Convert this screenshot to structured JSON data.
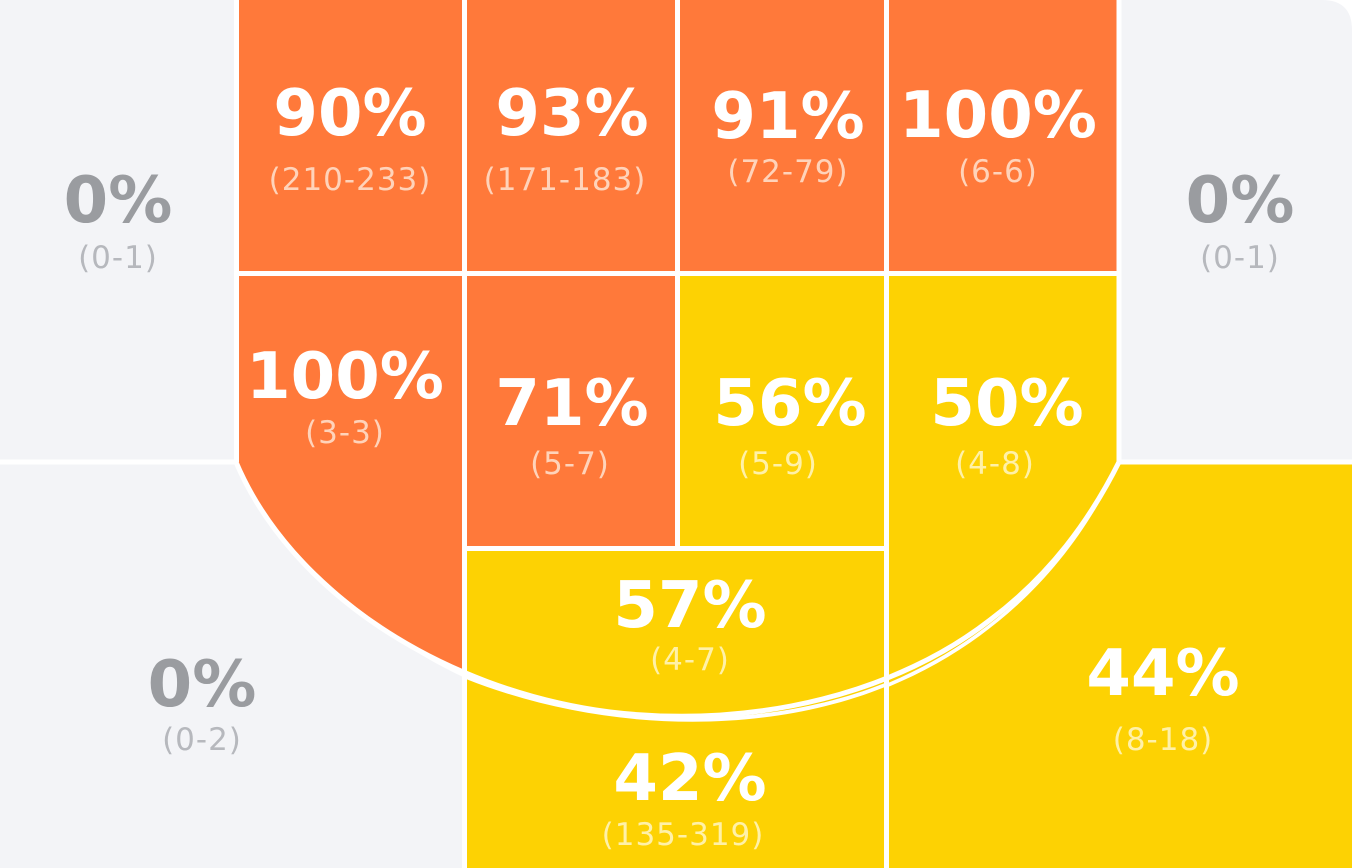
{
  "chart_data": {
    "type": "heatmap",
    "colors": {
      "hot": "#FF793A",
      "warm": "#FDD203",
      "none": "#F3F4F7",
      "divider": "#FFFFFF",
      "hot_count": "#FFD3BA",
      "warm_count": "#FFF1A8",
      "none_pct": "#9A9CA0",
      "none_count": "#B6B8BD"
    },
    "zones": [
      {
        "zone": "left-corner",
        "pct": "0%",
        "made": 0,
        "attempts": 1,
        "count": "(0-1)",
        "heat": "none"
      },
      {
        "zone": "top-1",
        "pct": "90%",
        "made": 210,
        "attempts": 233,
        "count": "(210-233)",
        "heat": "hot"
      },
      {
        "zone": "top-2",
        "pct": "93%",
        "made": 171,
        "attempts": 183,
        "count": "(171-183)",
        "heat": "hot"
      },
      {
        "zone": "top-3",
        "pct": "91%",
        "made": 72,
        "attempts": 79,
        "count": "(72-79)",
        "heat": "hot"
      },
      {
        "zone": "top-4",
        "pct": "100%",
        "made": 6,
        "attempts": 6,
        "count": "(6-6)",
        "heat": "hot"
      },
      {
        "zone": "right-corner",
        "pct": "0%",
        "made": 0,
        "attempts": 1,
        "count": "(0-1)",
        "heat": "none"
      },
      {
        "zone": "left-baseline-mid",
        "pct": "100%",
        "made": 3,
        "attempts": 3,
        "count": "(3-3)",
        "heat": "hot"
      },
      {
        "zone": "paint-left",
        "pct": "71%",
        "made": 5,
        "attempts": 7,
        "count": "(5-7)",
        "heat": "hot"
      },
      {
        "zone": "paint-right",
        "pct": "56%",
        "made": 5,
        "attempts": 9,
        "count": "(5-9)",
        "heat": "warm"
      },
      {
        "zone": "right-baseline-mid",
        "pct": "50%",
        "made": 4,
        "attempts": 8,
        "count": "(4-8)",
        "heat": "warm"
      },
      {
        "zone": "mid-range-top",
        "pct": "57%",
        "made": 4,
        "attempts": 7,
        "count": "(4-7)",
        "heat": "warm"
      },
      {
        "zone": "left-wing-three",
        "pct": "0%",
        "made": 0,
        "attempts": 2,
        "count": "(0-2)",
        "heat": "none"
      },
      {
        "zone": "top-of-key-three",
        "pct": "42%",
        "made": 135,
        "attempts": 319,
        "count": "(135-319)",
        "heat": "warm"
      },
      {
        "zone": "right-wing-three",
        "pct": "44%",
        "made": 8,
        "attempts": 18,
        "count": "(8-18)",
        "heat": "warm"
      }
    ]
  }
}
